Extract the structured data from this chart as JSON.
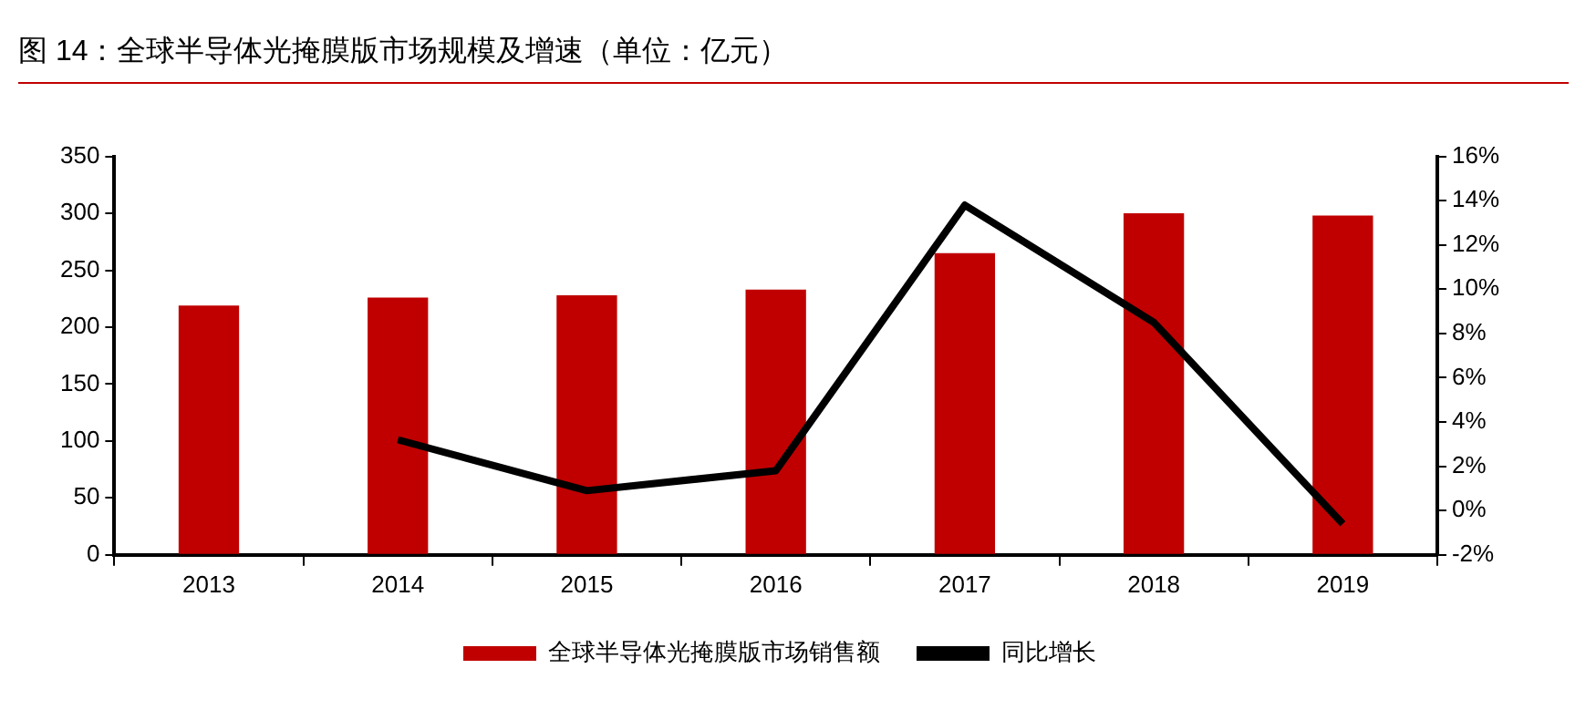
{
  "chart_data": {
    "type": "bar",
    "title": "图 14：全球半导体光掩膜版市场规模及增速（单位：亿元）",
    "categories": [
      "2013",
      "2014",
      "2015",
      "2016",
      "2017",
      "2018",
      "2019"
    ],
    "series": [
      {
        "name": "全球半导体光掩膜版市场销售额",
        "color": "#c00000",
        "values": [
          219,
          226,
          228,
          233,
          265,
          300,
          298
        ]
      },
      {
        "name": "同比增长",
        "type": "line",
        "axis": "y2",
        "color": "#000000",
        "values": [
          null,
          3.2,
          0.9,
          1.8,
          13.8,
          8.5,
          -0.6
        ]
      }
    ],
    "ylim": [
      0,
      350
    ],
    "yticks": [
      0,
      50,
      100,
      150,
      200,
      250,
      300,
      350
    ],
    "y2lim": [
      -2,
      16
    ],
    "y2ticks": [
      {
        "value": -2,
        "label": "-2%"
      },
      {
        "value": 0,
        "label": "0%"
      },
      {
        "value": 2,
        "label": "2%"
      },
      {
        "value": 4,
        "label": "4%"
      },
      {
        "value": 6,
        "label": "6%"
      },
      {
        "value": 8,
        "label": "8%"
      },
      {
        "value": 10,
        "label": "10%"
      },
      {
        "value": 12,
        "label": "12%"
      },
      {
        "value": 14,
        "label": "14%"
      },
      {
        "value": 16,
        "label": "16%"
      }
    ],
    "grid": false,
    "legend": "bottom",
    "marker": "none"
  }
}
